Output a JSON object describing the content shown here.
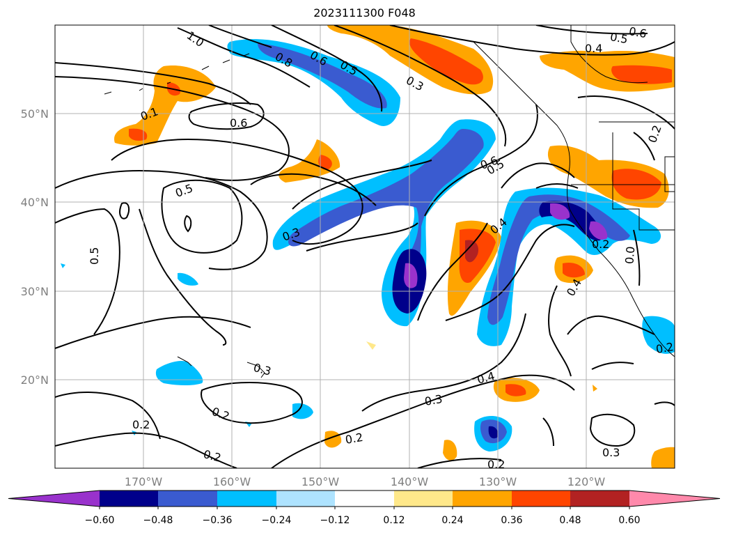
{
  "title": "2023111300 F048",
  "map": {
    "lat_ticks": [
      "50°N",
      "40°N",
      "30°N",
      "20°N"
    ],
    "lon_ticks": [
      "170°W",
      "160°W",
      "150°W",
      "140°W",
      "130°W",
      "120°W"
    ],
    "contour_labels": [
      "1.0",
      "0.8",
      "0.6",
      "0.5",
      "0.3",
      "0.6",
      "0.5",
      "0.4",
      "0.6",
      "0.2",
      "0.1",
      "0.6",
      "0.5",
      "0.5",
      "0.4",
      "0.3",
      "0.2",
      "0.0",
      "0.4",
      "0.5",
      "0.3",
      "0.4",
      "0.3",
      "0.2",
      "0.2",
      "0.2",
      "0.2",
      "0.2",
      "0.3",
      "0.2"
    ],
    "grid": true
  },
  "colorbar": {
    "tick_labels": [
      "−0.60",
      "−0.48",
      "−0.36",
      "−0.24",
      "−0.12",
      "0.12",
      "0.24",
      "0.36",
      "0.48",
      "0.60"
    ],
    "colors": [
      "#9932cc",
      "#00008b",
      "#3a5bd0",
      "#00bfff",
      "#aee3ff",
      "#ffffff",
      "#ffe88a",
      "#ffa500",
      "#ff4500",
      "#b22222",
      "#ff89ab"
    ]
  }
}
